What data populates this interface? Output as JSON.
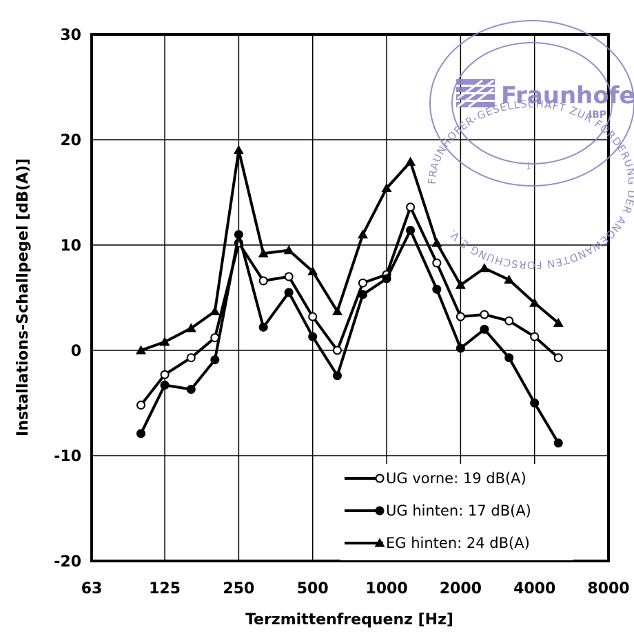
{
  "chart_data": {
    "type": "line",
    "title": "",
    "xlabel": "Terzmittenfrequenz [Hz]",
    "ylabel": "Installations-Schallpegel [dB(A)]",
    "x_scale": "log2",
    "xlim": [
      63,
      8000
    ],
    "ylim": [
      -20,
      30
    ],
    "x_ticks": [
      63,
      125,
      250,
      500,
      1000,
      2000,
      4000,
      8000
    ],
    "x_tick_labels": [
      "63",
      "125",
      "250",
      "500",
      "1000",
      "2000",
      "4000",
      "8000"
    ],
    "y_ticks": [
      -20,
      -10,
      0,
      10,
      20,
      30
    ],
    "y_tick_labels": [
      "-20",
      "-10",
      "0",
      "10",
      "20",
      "30"
    ],
    "grid": true,
    "legend_position": "bottom-right",
    "x": [
      100,
      125,
      160,
      200,
      250,
      315,
      400,
      500,
      630,
      800,
      1000,
      1250,
      1600,
      2000,
      2500,
      3150,
      4000,
      5000
    ],
    "series": [
      {
        "name": "UG vorne: 19 dB(A)",
        "marker": "open-circle",
        "values": [
          -5.2,
          -2.3,
          -0.7,
          1.2,
          10.2,
          6.6,
          7.0,
          3.2,
          0.0,
          6.4,
          7.2,
          13.6,
          8.3,
          3.2,
          3.4,
          2.8,
          1.3,
          -0.7
        ]
      },
      {
        "name": "UG hinten: 17 dB(A)",
        "marker": "filled-circle",
        "values": [
          -7.9,
          -3.3,
          -3.7,
          -0.9,
          11.0,
          2.2,
          5.5,
          1.3,
          -2.4,
          5.3,
          6.8,
          11.4,
          5.8,
          0.2,
          2.0,
          -0.7,
          -5.0,
          -8.8
        ]
      },
      {
        "name": "EG hinten: 24 dB(A)",
        "marker": "filled-triangle",
        "values": [
          0.0,
          0.8,
          2.1,
          3.7,
          19.0,
          9.2,
          9.5,
          7.5,
          3.7,
          11.0,
          15.4,
          17.9,
          10.2,
          6.2,
          7.8,
          6.7,
          4.5,
          2.6
        ]
      }
    ]
  },
  "stamp": {
    "ring_text": "FRAUNHOFER-GESELLSCHAFT ZUR FÖRDERUNG DER ANGEWANDTEN FORSCHUNG E.V.",
    "brand": "Fraunhofer",
    "institute": "IBP",
    "number": "1",
    "color": "#8e83c8"
  }
}
